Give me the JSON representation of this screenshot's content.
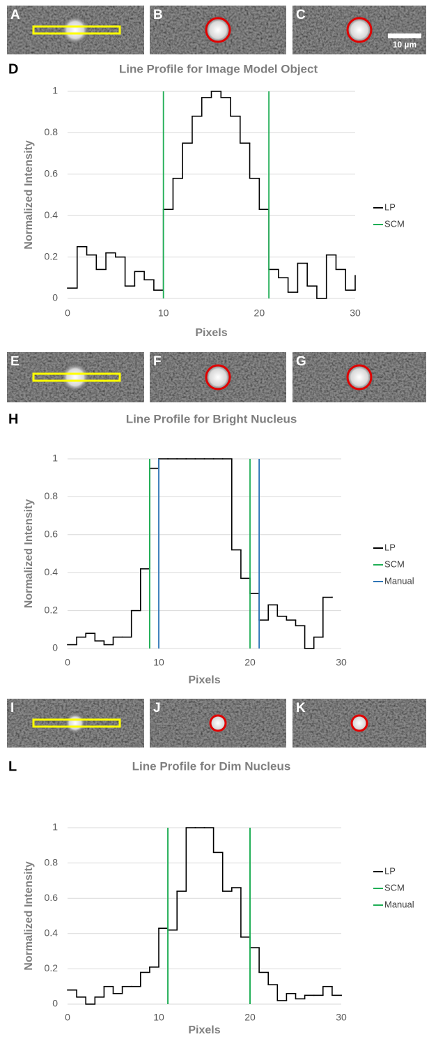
{
  "chart_data": [
    {
      "type": "line",
      "step": true,
      "panel_label": "D",
      "image_labels": [
        "A",
        "B",
        "C"
      ],
      "scale_bar": "10 µm",
      "title": "Line Profile for Image Model Object",
      "x_label": "Pixels",
      "y_label": "Normalized Intensity",
      "x": [
        0,
        1,
        2,
        3,
        4,
        5,
        6,
        7,
        8,
        9,
        10,
        11,
        12,
        13,
        14,
        15,
        16,
        17,
        18,
        19,
        20,
        21,
        22,
        23,
        24,
        25,
        26,
        27,
        28,
        29,
        30
      ],
      "series": [
        {
          "name": "LP",
          "color": "#000000",
          "values": [
            0.05,
            0.25,
            0.21,
            0.14,
            0.22,
            0.2,
            0.06,
            0.13,
            0.09,
            0.04,
            0.43,
            0.58,
            0.75,
            0.88,
            0.97,
            1.0,
            0.97,
            0.88,
            0.75,
            0.58,
            0.43,
            0.14,
            0.1,
            0.03,
            0.17,
            0.06,
            0.0,
            0.21,
            0.14,
            0.04,
            0.11
          ]
        },
        {
          "name": "SCM",
          "color": "#1fae55",
          "xpos": [
            10,
            21
          ]
        }
      ],
      "xlim": [
        0,
        30
      ],
      "xticks": [
        0,
        10,
        20,
        30
      ],
      "ylim": [
        0,
        1
      ],
      "yticks": [
        0,
        0.2,
        0.4,
        0.6,
        0.8,
        1
      ],
      "grid": true,
      "legend": "right"
    },
    {
      "type": "line",
      "step": true,
      "panel_label": "H",
      "image_labels": [
        "E",
        "F",
        "G"
      ],
      "title": "Line Profile for Bright Nucleus",
      "x_label": "Pixels",
      "y_label": "Normalized Intensity",
      "x": [
        0,
        1,
        2,
        3,
        4,
        5,
        6,
        7,
        8,
        9,
        10,
        11,
        12,
        13,
        14,
        15,
        16,
        17,
        18,
        19,
        20,
        21,
        22,
        23,
        24,
        25,
        26,
        27,
        28,
        29
      ],
      "series": [
        {
          "name": "LP",
          "color": "#000000",
          "values": [
            0.02,
            0.06,
            0.08,
            0.04,
            0.02,
            0.06,
            0.06,
            0.2,
            0.42,
            0.95,
            1,
            1,
            1,
            1,
            1,
            1,
            1,
            1,
            0.52,
            0.37,
            0.29,
            0.15,
            0.23,
            0.17,
            0.15,
            0.12,
            0.0,
            0.06,
            0.27,
            0.27
          ]
        },
        {
          "name": "SCM",
          "color": "#1fae55",
          "xpos": [
            9,
            20
          ]
        },
        {
          "name": "Manual",
          "color": "#2e75b6",
          "xpos": [
            10,
            21
          ]
        }
      ],
      "xlim": [
        0,
        30
      ],
      "xticks": [
        0,
        10,
        20,
        30
      ],
      "ylim": [
        0,
        1
      ],
      "yticks": [
        0,
        0.2,
        0.4,
        0.6,
        0.8,
        1
      ],
      "grid": true,
      "legend": "right"
    },
    {
      "type": "line",
      "step": true,
      "panel_label": "L",
      "image_labels": [
        "I",
        "J",
        "K"
      ],
      "title": "Line Profile for Dim Nucleus",
      "x_label": "Pixels",
      "y_label": "Normalized Intensity",
      "x": [
        0,
        1,
        2,
        3,
        4,
        5,
        6,
        7,
        8,
        9,
        10,
        11,
        12,
        13,
        14,
        15,
        16,
        17,
        18,
        19,
        20,
        21,
        22,
        23,
        24,
        25,
        26,
        27,
        28,
        29,
        30
      ],
      "series": [
        {
          "name": "LP",
          "color": "#000000",
          "values": [
            0.08,
            0.04,
            0.0,
            0.04,
            0.1,
            0.06,
            0.1,
            0.1,
            0.18,
            0.21,
            0.43,
            0.42,
            0.64,
            1,
            1,
            1,
            0.86,
            0.64,
            0.66,
            0.38,
            0.32,
            0.18,
            0.11,
            0.02,
            0.06,
            0.03,
            0.05,
            0.05,
            0.1,
            0.05,
            0.05
          ]
        },
        {
          "name": "SCM",
          "color": "#1fae55",
          "xpos": [
            11,
            20
          ]
        },
        {
          "name": "Manual",
          "color": "#1fae55",
          "xpos": [
            11,
            20
          ]
        }
      ],
      "xlim": [
        0,
        30
      ],
      "xticks": [
        0,
        10,
        20,
        30
      ],
      "ylim": [
        0,
        1
      ],
      "yticks": [
        0,
        0.2,
        0.4,
        0.6,
        0.8,
        1
      ],
      "grid": true,
      "legend": "right"
    }
  ]
}
